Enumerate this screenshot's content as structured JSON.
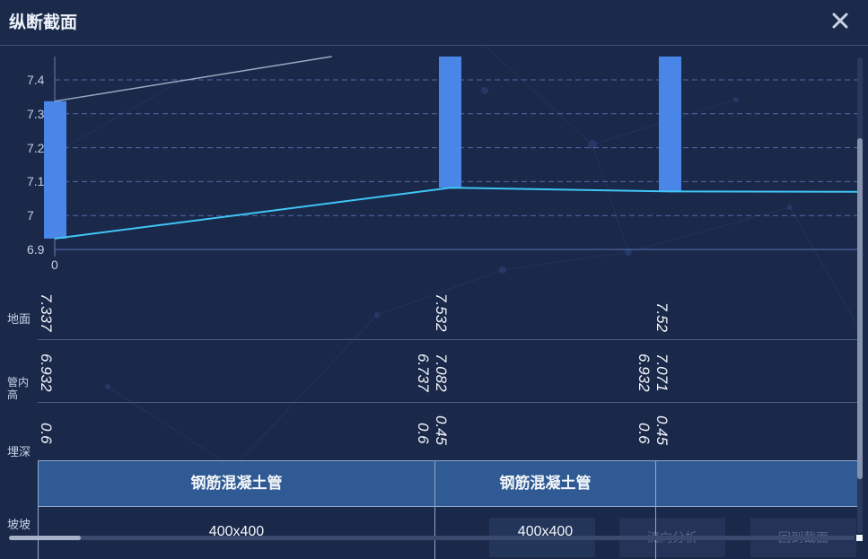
{
  "window": {
    "title": "纵断截面",
    "close_icon": "close-icon"
  },
  "chart_data": {
    "type": "line",
    "y_ticks": [
      "7.4",
      "7.3",
      "7.2",
      "7.1",
      "7",
      "6.9"
    ],
    "x_ticks": [
      "0"
    ],
    "ylim": [
      6.9,
      7.45
    ],
    "grid": true,
    "series": [
      {
        "x": [
          0,
          1,
          2,
          3
        ],
        "y": [
          6.932,
          7.082,
          7.071,
          7.07
        ]
      },
      {
        "x": [
          0,
          0.7
        ],
        "y": [
          7.337,
          7.47
        ]
      }
    ],
    "pipe_bars": [
      {
        "x": 0,
        "bottom": 6.932,
        "top": 7.337
      },
      {
        "x": 1,
        "bottom": 7.082,
        "top": 7.47
      },
      {
        "x": 2,
        "bottom": 7.071,
        "top": 7.47
      }
    ],
    "colors": {
      "pipe": "#4a86e8",
      "invert_line": "#3fc6f5",
      "ground_line": "#9aa9c2"
    }
  },
  "rows": {
    "ground": {
      "label": "地面",
      "values": [
        "7.337",
        "7.532",
        "7.52"
      ]
    },
    "invert": {
      "label": "管内\n高",
      "col1": [
        "6.932"
      ],
      "col2": [
        "7.082",
        "6.737"
      ],
      "col3": [
        "7.071",
        "6.932"
      ]
    },
    "depth": {
      "label": "埋深",
      "col1": [
        "0.6"
      ],
      "col2": [
        "0.45",
        "0.6"
      ],
      "col3": [
        "0.45",
        "0.6"
      ]
    },
    "slope": {
      "label": "坡坡"
    }
  },
  "table": {
    "headers": [
      "钢筋混凝土管",
      "钢筋混凝土管",
      ""
    ],
    "cells": [
      "400x400",
      "400x400",
      ""
    ]
  },
  "background_buttons": [
    "",
    "流向分析",
    "回到截面"
  ]
}
